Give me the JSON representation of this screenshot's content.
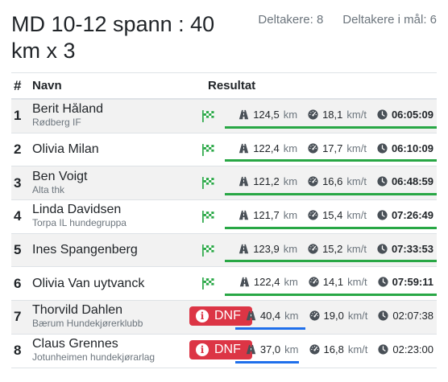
{
  "event": {
    "title": "MD 10-12 spann : 40 km x 3",
    "participants_label": "Deltakere: 8",
    "finishers_label": "Deltakere i mål: 6"
  },
  "table": {
    "headers": {
      "num": "#",
      "name": "Navn",
      "result": "Resultat"
    },
    "rows": [
      {
        "num": "1",
        "name": "Berit Håland",
        "club": "Rødberg IF",
        "status": "finished",
        "distance": "124,5",
        "distance_unit": "km",
        "speed": "18,1",
        "speed_unit": "km/t",
        "time": "06:05:09",
        "progress": 1.0
      },
      {
        "num": "2",
        "name": "Olivia Milan",
        "club": "",
        "status": "finished",
        "distance": "122,4",
        "distance_unit": "km",
        "speed": "17,7",
        "speed_unit": "km/t",
        "time": "06:10:09",
        "progress": 1.0
      },
      {
        "num": "3",
        "name": "Ben Voigt",
        "club": "Alta thk",
        "status": "finished",
        "distance": "121,2",
        "distance_unit": "km",
        "speed": "16,6",
        "speed_unit": "km/t",
        "time": "06:48:59",
        "progress": 1.0
      },
      {
        "num": "4",
        "name": "Linda Davidsen",
        "club": "Torpa IL hundegruppa",
        "status": "finished",
        "distance": "121,7",
        "distance_unit": "km",
        "speed": "15,4",
        "speed_unit": "km/t",
        "time": "07:26:49",
        "progress": 1.0
      },
      {
        "num": "5",
        "name": "Ines Spangenberg",
        "club": "",
        "status": "finished",
        "distance": "123,9",
        "distance_unit": "km",
        "speed": "15,2",
        "speed_unit": "km/t",
        "time": "07:33:53",
        "progress": 1.0
      },
      {
        "num": "6",
        "name": "Olivia Van uytvanck",
        "club": "",
        "status": "finished",
        "distance": "122,4",
        "distance_unit": "km",
        "speed": "14,1",
        "speed_unit": "km/t",
        "time": "07:59:11",
        "progress": 1.0
      },
      {
        "num": "7",
        "name": "Thorvild Dahlen",
        "club": "Bærum Hundekjørerklubb",
        "status": "dnf",
        "dnf_label": "DNF",
        "distance": "40,4",
        "distance_unit": "km",
        "speed": "19,0",
        "speed_unit": "km/t",
        "time": "02:07:38",
        "progress": 0.33
      },
      {
        "num": "8",
        "name": "Claus Grennes",
        "club": "Jotunheimen hundekjørarlag",
        "status": "dnf",
        "dnf_label": "DNF",
        "distance": "37,0",
        "distance_unit": "km",
        "speed": "16,8",
        "speed_unit": "km/t",
        "time": "02:23:00",
        "progress": 0.3
      }
    ]
  },
  "icons": {
    "finish": "checkered-flag-icon",
    "distance": "road-icon",
    "speed": "speedometer-icon",
    "time": "clock-icon",
    "dnf": "info-circle-icon"
  },
  "colors": {
    "flag_green": "#28a745",
    "finished_bar": "#28a745",
    "dnf_bar": "#1f6feb",
    "dnf_badge": "#dc3545"
  }
}
